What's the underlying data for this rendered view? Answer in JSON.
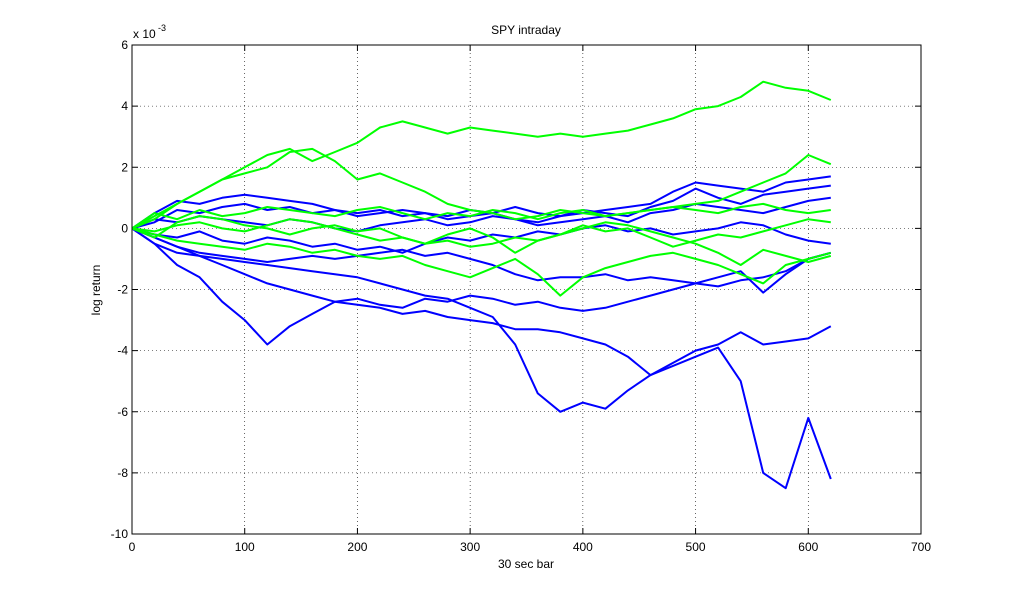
{
  "chart_data": {
    "type": "line",
    "title": "SPY intraday",
    "xlabel": "30 sec bar",
    "ylabel": "log return",
    "y_multiplier": {
      "base": "x 10",
      "exponent": "-3"
    },
    "xlim": [
      0,
      700
    ],
    "xticks": [
      0,
      100,
      200,
      300,
      400,
      500,
      600,
      700
    ],
    "ylim": [
      -10,
      6
    ],
    "yticks": [
      -10,
      -8,
      -6,
      -4,
      -2,
      0,
      2,
      4,
      6
    ],
    "grid": true,
    "x": [
      0,
      20,
      40,
      60,
      80,
      100,
      120,
      140,
      160,
      180,
      200,
      220,
      240,
      260,
      280,
      300,
      320,
      340,
      360,
      380,
      400,
      420,
      440,
      460,
      480,
      500,
      520,
      540,
      560,
      580,
      600,
      620
    ],
    "series": [
      {
        "color": "#0000ff",
        "values": [
          0,
          -0.3,
          -0.6,
          -0.9,
          -1.2,
          -1.5,
          -1.8,
          -2.0,
          -2.2,
          -2.4,
          -2.5,
          -2.6,
          -2.8,
          -2.7,
          -2.9,
          -3.0,
          -3.1,
          -3.3,
          -3.3,
          -3.4,
          -3.6,
          -3.8,
          -4.2,
          -4.8,
          -4.5,
          -4.2,
          -3.9,
          -5.0,
          -8.0,
          -8.5,
          -6.2,
          -8.2
        ]
      },
      {
        "color": "#0000ff",
        "values": [
          0,
          -0.5,
          -0.8,
          -0.9,
          -1.0,
          -1.1,
          -1.2,
          -1.3,
          -1.4,
          -1.5,
          -1.6,
          -1.8,
          -2.0,
          -2.2,
          -2.3,
          -2.6,
          -2.9,
          -3.8,
          -5.4,
          -6.0,
          -5.7,
          -5.9,
          -5.3,
          -4.8,
          -4.4,
          -4.0,
          -3.8,
          -3.4,
          -3.8,
          -3.7,
          -3.6,
          -3.2
        ]
      },
      {
        "color": "#0000ff",
        "values": [
          0,
          -0.5,
          -1.2,
          -1.6,
          -2.4,
          -3.0,
          -3.8,
          -3.2,
          -2.8,
          -2.4,
          -2.3,
          -2.5,
          -2.6,
          -2.3,
          -2.4,
          -2.2,
          -2.3,
          -2.5,
          -2.4,
          -2.6,
          -2.7,
          -2.6,
          -2.4,
          -2.2,
          -2.0,
          -1.8,
          -1.9,
          -1.7,
          -1.6,
          -1.4,
          -1.0,
          -0.8
        ]
      },
      {
        "color": "#0000ff",
        "values": [
          0,
          0.5,
          0.9,
          0.8,
          1.0,
          1.1,
          1.0,
          0.9,
          0.8,
          0.6,
          0.5,
          0.6,
          0.4,
          0.5,
          0.3,
          0.4,
          0.5,
          0.3,
          0.2,
          0.4,
          0.5,
          0.6,
          0.7,
          0.8,
          1.2,
          1.5,
          1.4,
          1.3,
          1.2,
          1.5,
          1.6,
          1.7
        ]
      },
      {
        "color": "#0000ff",
        "values": [
          0,
          -0.3,
          -0.6,
          -0.8,
          -0.9,
          -1.0,
          -1.1,
          -1.0,
          -0.9,
          -1.0,
          -0.9,
          -0.8,
          -0.7,
          -0.9,
          -0.8,
          -1.0,
          -1.2,
          -1.5,
          -1.7,
          -1.6,
          -1.6,
          -1.5,
          -1.7,
          -1.6,
          -1.7,
          -1.8,
          -1.6,
          -1.4,
          -2.1,
          -1.5,
          -1.0,
          -0.8
        ]
      },
      {
        "color": "#0000ff",
        "values": [
          0,
          0.3,
          0.2,
          0.4,
          0.3,
          0.2,
          0.1,
          0.3,
          0.2,
          0.0,
          -0.1,
          0.1,
          0.2,
          0.3,
          0.1,
          0.2,
          0.4,
          0.3,
          0.1,
          0.2,
          0.3,
          0.4,
          0.2,
          0.5,
          0.6,
          0.8,
          0.7,
          0.6,
          0.5,
          0.7,
          0.9,
          1.0
        ]
      },
      {
        "color": "#0000ff",
        "values": [
          0,
          -0.2,
          -0.3,
          -0.1,
          -0.4,
          -0.5,
          -0.3,
          -0.4,
          -0.6,
          -0.5,
          -0.7,
          -0.6,
          -0.8,
          -0.5,
          -0.3,
          -0.4,
          -0.2,
          -0.3,
          -0.1,
          -0.2,
          0.0,
          0.1,
          -0.1,
          0.0,
          -0.2,
          -0.1,
          0.0,
          0.2,
          0.1,
          -0.2,
          -0.4,
          -0.5
        ]
      },
      {
        "color": "#0000ff",
        "values": [
          0,
          0.2,
          0.6,
          0.5,
          0.7,
          0.8,
          0.6,
          0.7,
          0.5,
          0.6,
          0.4,
          0.5,
          0.6,
          0.5,
          0.4,
          0.6,
          0.5,
          0.7,
          0.5,
          0.4,
          0.6,
          0.5,
          0.4,
          0.7,
          0.9,
          1.3,
          1.0,
          0.8,
          1.1,
          1.2,
          1.3,
          1.4
        ]
      },
      {
        "color": "#00ff00",
        "values": [
          0,
          0.4,
          0.8,
          1.2,
          1.6,
          2.0,
          2.4,
          2.6,
          2.2,
          2.5,
          2.8,
          3.3,
          3.5,
          3.3,
          3.1,
          3.3,
          3.2,
          3.1,
          3.0,
          3.1,
          3.0,
          3.1,
          3.2,
          3.4,
          3.6,
          3.9,
          4.0,
          4.3,
          4.8,
          4.6,
          4.5,
          4.2
        ]
      },
      {
        "color": "#00ff00",
        "values": [
          0,
          0.3,
          0.8,
          1.2,
          1.6,
          1.8,
          2.0,
          2.5,
          2.6,
          2.2,
          1.6,
          1.8,
          1.5,
          1.2,
          0.8,
          0.6,
          0.5,
          0.3,
          0.4,
          0.6,
          0.5,
          0.4,
          0.5,
          0.6,
          0.7,
          0.8,
          0.9,
          1.2,
          1.5,
          1.8,
          2.4,
          2.1
        ]
      },
      {
        "color": "#00ff00",
        "values": [
          0,
          -0.2,
          -0.4,
          -0.5,
          -0.6,
          -0.7,
          -0.5,
          -0.6,
          -0.8,
          -0.7,
          -0.9,
          -1.0,
          -0.9,
          -1.2,
          -1.4,
          -1.6,
          -1.3,
          -1.0,
          -1.5,
          -2.2,
          -1.6,
          -1.3,
          -1.1,
          -0.9,
          -0.8,
          -1.0,
          -1.2,
          -1.5,
          -1.8,
          -1.2,
          -1.0,
          -0.8
        ]
      },
      {
        "color": "#00ff00",
        "values": [
          0,
          0.5,
          0.3,
          0.6,
          0.4,
          0.5,
          0.7,
          0.6,
          0.5,
          0.4,
          0.6,
          0.7,
          0.5,
          0.3,
          0.5,
          0.4,
          0.6,
          0.5,
          0.3,
          0.5,
          0.6,
          0.4,
          0.5,
          0.6,
          0.7,
          0.6,
          0.5,
          0.7,
          0.8,
          0.6,
          0.5,
          0.6
        ]
      },
      {
        "color": "#00ff00",
        "values": [
          0,
          -0.3,
          0.2,
          0.4,
          0.3,
          0.1,
          0.0,
          -0.2,
          0.0,
          0.1,
          -0.1,
          0.0,
          -0.3,
          -0.5,
          -0.2,
          0.0,
          -0.3,
          -0.8,
          -0.4,
          -0.2,
          0.1,
          -0.1,
          0.0,
          -0.3,
          -0.6,
          -0.4,
          -0.2,
          -0.3,
          -0.1,
          0.1,
          0.3,
          0.2
        ]
      },
      {
        "color": "#00ff00",
        "values": [
          0,
          -0.1,
          0.1,
          0.2,
          0.0,
          -0.1,
          0.1,
          0.3,
          0.2,
          0.0,
          -0.2,
          -0.4,
          -0.3,
          -0.5,
          -0.4,
          -0.6,
          -0.5,
          -0.3,
          -0.4,
          -0.2,
          0.0,
          0.2,
          0.1,
          -0.1,
          -0.3,
          -0.5,
          -0.8,
          -1.2,
          -0.7,
          -0.9,
          -1.1,
          -0.9
        ]
      }
    ]
  }
}
